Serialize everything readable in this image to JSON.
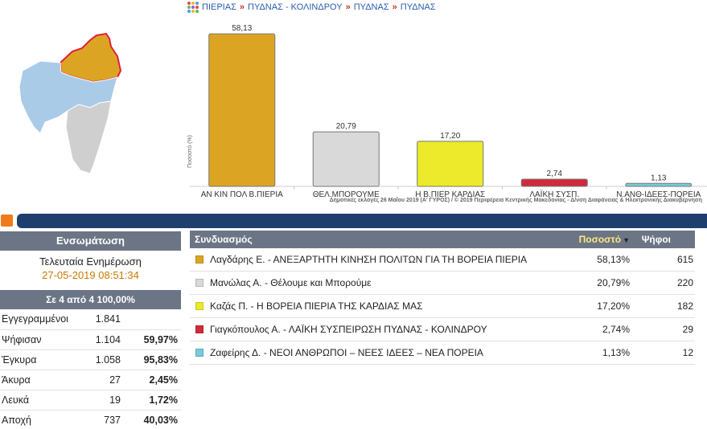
{
  "breadcrumb": {
    "items": [
      "ΠΙΕΡΙΑΣ",
      "ΠΥΔΝΑΣ - ΚΟΛΙΝΔΡΟΥ",
      "ΠΥΔΝΑΣ",
      "ΠΥΔΝΑΣ"
    ],
    "separator": "»"
  },
  "chart_data": {
    "type": "bar",
    "categories": [
      "ΑΝ ΚΙΝ ΠΟΛ Β.ΠΙΕΡΙΑ",
      "ΘΕΛ.ΜΠΟΡΟΥΜΕ",
      "Η Β.ΠΙΕΡ ΚΑΡΔΙΑΣ",
      "ΛΑΪΚΗ ΣΥΣΠ.",
      "Ν.ΑΝΘ-ΙΔΕΕΣ-ΠΟΡΕΙΑ"
    ],
    "values": [
      58.13,
      20.79,
      17.2,
      2.74,
      1.13
    ],
    "value_labels": [
      "58,13",
      "20,79",
      "17,20",
      "2,74",
      "1,13"
    ],
    "colors": [
      "#dba523",
      "#d9d9d9",
      "#ecea2a",
      "#d02b3c",
      "#76ccd8"
    ],
    "ylabel": "Ποσοστό (%)",
    "ylim": [
      0,
      60
    ],
    "grid": false,
    "credit": "Δημοτικές εκλογές 26 Μαΐου 2019 (Α' ΓΥΡΟΣ) / © 2019 Περιφέρεια Κεντρικής Μακεδονίας - Δ/νση Διαφάνειας & Ηλεκτρονικής Διακυβέρνηση"
  },
  "left_panel": {
    "title": "Ενσωμάτωση",
    "update_title": "Τελευταία Ενημέρωση",
    "update_time": "27-05-2019 08:51:34",
    "counted": "Σε 4 από  4   100,00%",
    "stats": [
      {
        "label": "Εγγεγραμμένοι",
        "value": "1.841",
        "pct": ""
      },
      {
        "label": "Ψήφισαν",
        "value": "1.104",
        "pct": "59,97%"
      },
      {
        "label": "Έγκυρα",
        "value": "1.058",
        "pct": "95,83%"
      },
      {
        "label": "Άκυρα",
        "value": "27",
        "pct": "2,45%"
      },
      {
        "label": "Λευκά",
        "value": "19",
        "pct": "1,72%"
      },
      {
        "label": "Αποχή",
        "value": "737",
        "pct": "40,03%"
      }
    ]
  },
  "results": {
    "col_name": "Συνδυασμός",
    "col_pct": "Ποσοστό",
    "col_votes": "Ψήφοι",
    "rows": [
      {
        "name": "Λαγδάρης Ε. - ΑΝΕΞΑΡΤΗΤΗ ΚΙΝΗΣΗ ΠΟΛΙΤΩΝ ΓΙΑ ΤΗ ΒΟΡΕΙΑ ΠΙΕΡΙΑ",
        "pct": "58,13%",
        "votes": "615",
        "color": "#dba523"
      },
      {
        "name": "Μανώλας Α. - Θέλουμε και Μπορούμε",
        "pct": "20,79%",
        "votes": "220",
        "color": "#d9d9d9"
      },
      {
        "name": "Καζάς Π. - Η ΒΟΡΕΙΑ ΠΙΕΡΙΑ ΤΗΣ ΚΑΡΔΙΑΣ ΜΑΣ",
        "pct": "17,20%",
        "votes": "182",
        "color": "#ecea2a"
      },
      {
        "name": "Γιαγκόπουλος Α. - ΛΑΪΚΗ ΣΥΣΠΕΙΡΩΣΗ ΠΥΔΝΑΣ - ΚΟΛΙΝΔΡΟΥ",
        "pct": "2,74%",
        "votes": "29",
        "color": "#d02b3c"
      },
      {
        "name": "Ζαφείρης Δ. - ΝΕΟΙ ΑΝΘΡΩΠΟΙ – ΝΕΕΣ ΙΔΕΕΣ – ΝΕΑ ΠΟΡΕΙΑ",
        "pct": "1,13%",
        "votes": "12",
        "color": "#76ccd8"
      }
    ]
  }
}
